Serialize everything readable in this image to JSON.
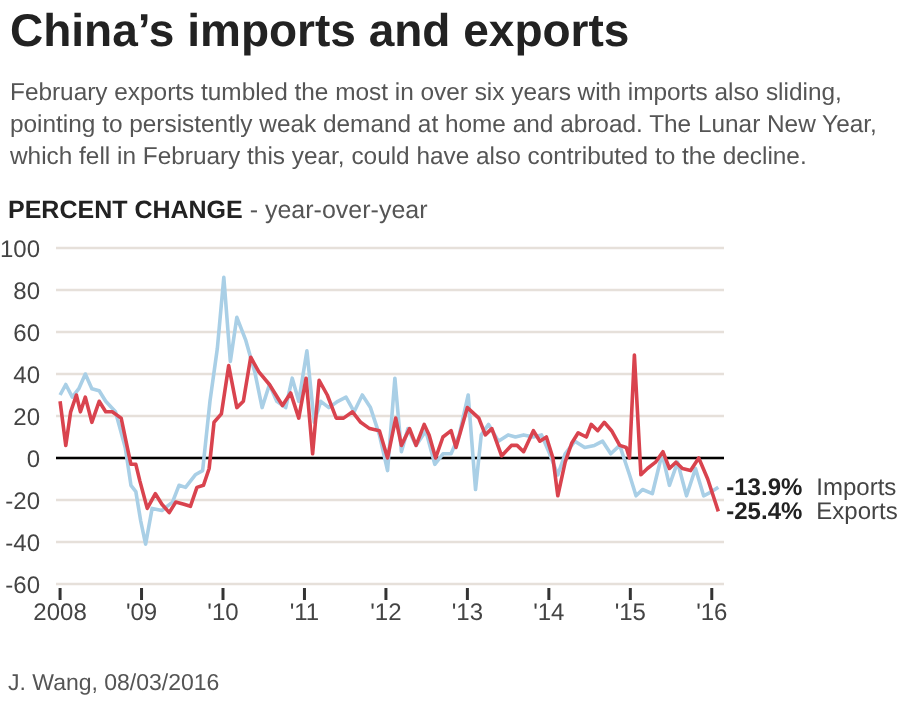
{
  "chart_data": {
    "type": "line",
    "title": "China’s imports and exports",
    "subtitle": "February exports tumbled the most in over six years with imports also sliding, pointing to persistently weak demand at home and abroad. The Lunar New Year, which fell in February this year, could have also contributed to the decline.",
    "ylabel": "PERCENT CHANGE - year-over-year",
    "series": [
      {
        "name": "Imports",
        "color": "#a9cfe6",
        "x": [
          2008.0,
          2008.07,
          2008.15,
          2008.23,
          2008.31,
          2008.39,
          2008.48,
          2008.56,
          2008.68,
          2008.8,
          2008.87,
          2008.93,
          2008.99,
          2009.05,
          2009.13,
          2009.25,
          2009.38,
          2009.46,
          2009.54,
          2009.66,
          2009.75,
          2009.84,
          2009.93,
          2010.01,
          2010.09,
          2010.17,
          2010.28,
          2010.39,
          2010.48,
          2010.57,
          2010.66,
          2010.77,
          2010.85,
          2010.93,
          2011.03,
          2011.12,
          2011.2,
          2011.3,
          2011.41,
          2011.51,
          2011.61,
          2011.71,
          2011.81,
          2011.92,
          2012.02,
          2012.11,
          2012.19,
          2012.27,
          2012.37,
          2012.49,
          2012.6,
          2012.7,
          2012.8,
          2012.9,
          2013.01,
          2013.1,
          2013.17,
          2013.26,
          2013.38,
          2013.5,
          2013.59,
          2013.69,
          2013.81,
          2013.91,
          2014.01,
          2014.11,
          2014.2,
          2014.32,
          2014.44,
          2014.56,
          2014.66,
          2014.76,
          2014.87,
          2014.99,
          2015.07,
          2015.15,
          2015.27,
          2015.39,
          2015.48,
          2015.58,
          2015.69,
          2015.8,
          2015.9,
          2016.0,
          2016.08
        ],
        "values": [
          30,
          35,
          29,
          33,
          40,
          33,
          32,
          27,
          22,
          5,
          -13,
          -16,
          -30,
          -41,
          -24,
          -25,
          -21,
          -13,
          -14,
          -8,
          -6,
          27,
          52,
          86,
          46,
          67,
          56,
          41,
          24,
          35,
          27,
          24,
          38,
          27,
          51,
          17,
          27,
          24,
          27,
          29,
          22,
          30,
          24,
          11,
          -6,
          38,
          3,
          14,
          6,
          13,
          -3,
          2,
          2,
          11,
          30,
          -15,
          11,
          16,
          8,
          11,
          10,
          11,
          10,
          11,
          2,
          -8,
          2,
          8,
          5,
          6,
          8,
          2,
          6,
          -8,
          -18,
          -15,
          -17,
          2,
          -13,
          -2,
          -18,
          -5,
          -18,
          -16,
          -13.9
        ]
      },
      {
        "name": "Exports",
        "color": "#d9434e",
        "x": [
          2008.0,
          2008.07,
          2008.13,
          2008.2,
          2008.25,
          2008.31,
          2008.39,
          2008.48,
          2008.56,
          2008.64,
          2008.75,
          2008.82,
          2008.87,
          2008.93,
          2008.98,
          2009.07,
          2009.17,
          2009.25,
          2009.34,
          2009.42,
          2009.52,
          2009.6,
          2009.68,
          2009.76,
          2009.83,
          2009.89,
          2009.98,
          2010.07,
          2010.17,
          2010.25,
          2010.34,
          2010.44,
          2010.57,
          2010.73,
          2010.83,
          2010.93,
          2011.02,
          2011.1,
          2011.18,
          2011.28,
          2011.39,
          2011.48,
          2011.59,
          2011.69,
          2011.8,
          2011.92,
          2012.02,
          2012.12,
          2012.19,
          2012.29,
          2012.37,
          2012.47,
          2012.53,
          2012.61,
          2012.7,
          2012.8,
          2012.86,
          2013.0,
          2013.14,
          2013.22,
          2013.3,
          2013.42,
          2013.54,
          2013.61,
          2013.69,
          2013.81,
          2013.89,
          2013.97,
          2014.05,
          2014.11,
          2014.2,
          2014.28,
          2014.36,
          2014.46,
          2014.52,
          2014.6,
          2014.68,
          2014.77,
          2014.87,
          2014.95,
          2014.99,
          2015.05,
          2015.13,
          2015.21,
          2015.31,
          2015.4,
          2015.48,
          2015.56,
          2015.64,
          2015.74,
          2015.84,
          2015.95,
          2016.08
        ],
        "values": [
          27,
          6,
          22,
          30,
          22,
          29,
          17,
          27,
          22,
          22,
          19,
          6,
          -3,
          -3,
          -11,
          -24,
          -17,
          -22,
          -26,
          -21,
          -22,
          -23,
          -14,
          -13,
          -5,
          17,
          21,
          44,
          24,
          27,
          48,
          41,
          35,
          25,
          31,
          19,
          38,
          2,
          37,
          30,
          19,
          19,
          22,
          17,
          14,
          13,
          0,
          19,
          6,
          14,
          6,
          16,
          11,
          0,
          10,
          13,
          5,
          24,
          19,
          11,
          14,
          1,
          6,
          6,
          3,
          13,
          8,
          10,
          0,
          -18,
          -2,
          7,
          12,
          10,
          16,
          13,
          17,
          13,
          6,
          5,
          0,
          49,
          -8,
          -5,
          -2,
          3,
          -5,
          -2,
          -5,
          -6,
          0,
          -10,
          -25.4
        ]
      }
    ],
    "xlim": [
      2007.95,
      2016.15
    ],
    "xticks": [
      2008,
      {
        "value": 2009,
        "label": "'09"
      },
      {
        "value": 2010,
        "label": "'10"
      },
      {
        "value": 2011,
        "label": "'11"
      },
      {
        "value": 2012,
        "label": "'12"
      },
      {
        "value": 2013,
        "label": "'13"
      },
      {
        "value": 2014,
        "label": "'14"
      },
      {
        "value": 2015,
        "label": "'15"
      },
      {
        "value": 2016,
        "label": "'16"
      }
    ],
    "ylim": [
      -60,
      100
    ],
    "yticks": [
      -60,
      -40,
      -20,
      0,
      20,
      40,
      60,
      80,
      100
    ],
    "grid": "y",
    "marker": "none",
    "line_style": "solid",
    "ref_lines": [
      {
        "axis": "y",
        "value": 0,
        "color": "#000000"
      }
    ],
    "annotations": [
      {
        "text": "-13.9%",
        "x": 2016.08,
        "y": -13.9
      },
      {
        "text": "-25.4%",
        "x": 2016.08,
        "y": -25.4
      },
      "J. Wang, 08/03/2016"
    ]
  }
}
